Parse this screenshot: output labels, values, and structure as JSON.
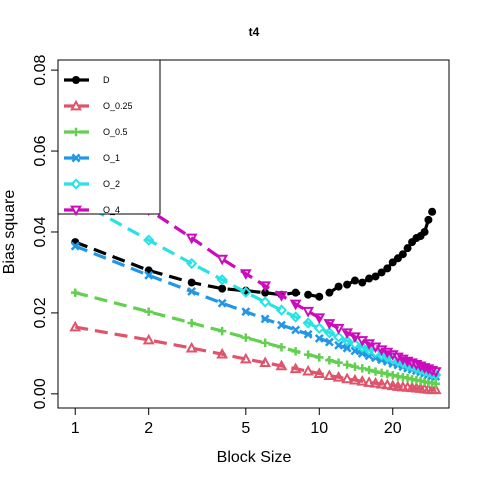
{
  "chart_data": {
    "type": "line",
    "title": "t4",
    "xlabel": "Block Size",
    "ylabel": "Bias square",
    "x_scale": "log",
    "xlim": [
      1,
      30
    ],
    "ylim": [
      0,
      0.08
    ],
    "x_ticks": [
      1,
      2,
      5,
      10,
      20
    ],
    "x_tick_labels": [
      "1",
      "2",
      "5",
      "10",
      "20"
    ],
    "y_ticks": [
      0,
      0.02,
      0.04,
      0.06,
      0.08
    ],
    "y_tick_labels": [
      "0.00",
      "0.02",
      "0.04",
      "0.06",
      "0.08"
    ],
    "grid": false,
    "legend_position": "top-left",
    "x": [
      1,
      2,
      3,
      4,
      5,
      6,
      7,
      8,
      9,
      10,
      11,
      12,
      13,
      14,
      15,
      16,
      17,
      18,
      19,
      20,
      21,
      22,
      23,
      24,
      25,
      26,
      27,
      28,
      29,
      30
    ],
    "series": [
      {
        "name": "D",
        "color": "#000000",
        "marker": "circle",
        "values": [
          0.0375,
          0.0305,
          0.0275,
          0.026,
          0.0255,
          0.025,
          0.0245,
          0.025,
          0.0245,
          0.024,
          0.025,
          0.0265,
          0.027,
          0.028,
          0.0275,
          0.0285,
          0.029,
          0.03,
          0.031,
          0.0325,
          0.0335,
          0.0345,
          0.036,
          0.0375,
          0.0385,
          0.039,
          0.04,
          0.043,
          0.045,
          null
        ]
      },
      {
        "name": "O_0.25",
        "color": "#DF536B",
        "marker": "triangle-up",
        "values": [
          0.0165,
          0.0133,
          0.0113,
          0.0098,
          0.0086,
          0.0077,
          0.0069,
          0.0062,
          0.0056,
          0.005,
          0.0045,
          0.0041,
          0.0037,
          0.0034,
          0.0031,
          0.0028,
          0.0026,
          0.0024,
          0.0022,
          0.002,
          0.0018,
          0.0017,
          0.0016,
          0.0015,
          0.0014,
          0.0013,
          0.0012,
          0.0011,
          0.001,
          0.001
        ]
      },
      {
        "name": "O_0.5",
        "color": "#61D04F",
        "marker": "plus",
        "values": [
          0.025,
          0.0203,
          0.0175,
          0.0155,
          0.0139,
          0.0126,
          0.0115,
          0.0105,
          0.0097,
          0.009,
          0.0083,
          0.0077,
          0.0072,
          0.0067,
          0.0063,
          0.0059,
          0.0055,
          0.0052,
          0.0049,
          0.0046,
          0.0043,
          0.0041,
          0.0039,
          0.0036,
          0.0034,
          0.0032,
          0.003,
          0.0028,
          0.0027,
          0.0025
        ]
      },
      {
        "name": "O_1",
        "color": "#2297E6",
        "marker": "x",
        "values": [
          0.0365,
          0.0293,
          0.0253,
          0.0224,
          0.0203,
          0.0185,
          0.017,
          0.0158,
          0.0147,
          0.0137,
          0.0128,
          0.012,
          0.0113,
          0.0106,
          0.01,
          0.0094,
          0.0089,
          0.0084,
          0.008,
          0.0075,
          0.0071,
          0.0067,
          0.0063,
          0.006,
          0.0057,
          0.0054,
          0.0051,
          0.0048,
          0.0045,
          0.0043
        ]
      },
      {
        "name": "O_2",
        "color": "#28E2E5",
        "marker": "diamond",
        "values": [
          0.048,
          0.038,
          0.0322,
          0.0282,
          0.0251,
          0.0227,
          0.0207,
          0.019,
          0.0175,
          0.0162,
          0.0151,
          0.014,
          0.0131,
          0.0123,
          0.0115,
          0.0108,
          0.0102,
          0.0096,
          0.009,
          0.0085,
          0.008,
          0.0076,
          0.0071,
          0.0067,
          0.0063,
          0.006,
          0.0056,
          0.0053,
          0.005,
          0.0047
        ]
      },
      {
        "name": "O_4",
        "color": "#CD0BBC",
        "marker": "triangle-down",
        "values": [
          0.058,
          0.0455,
          0.0385,
          0.0333,
          0.0297,
          0.0267,
          0.0243,
          0.0222,
          0.0204,
          0.0188,
          0.0174,
          0.0162,
          0.0151,
          0.0141,
          0.0132,
          0.0124,
          0.0116,
          0.0109,
          0.0103,
          0.0097,
          0.0091,
          0.0086,
          0.0081,
          0.0077,
          0.0073,
          0.0069,
          0.0065,
          0.0062,
          0.0058,
          0.0055
        ]
      }
    ]
  }
}
